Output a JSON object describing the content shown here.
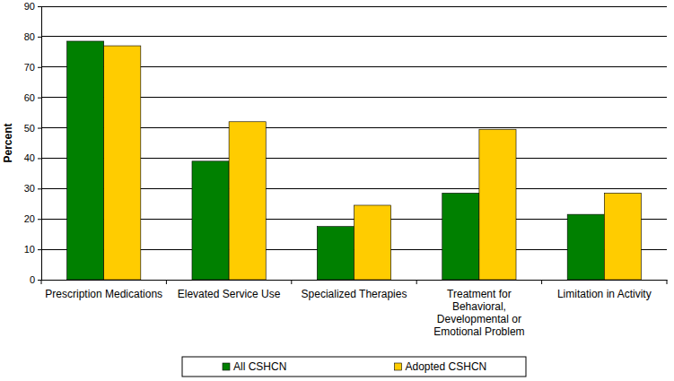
{
  "chart_data": {
    "type": "bar",
    "y_label": "Percent",
    "categories": [
      "Prescription Medications",
      "Elevated Service Use",
      "Specialized Therapies",
      "Treatment for Behavioral, Developmental or Emotional Problem",
      "Limitation in Activity"
    ],
    "series": [
      {
        "name": "All CSHCN",
        "color": "#008000",
        "values": [
          78.5,
          39,
          17.5,
          28.5,
          21.5
        ]
      },
      {
        "name": "Adopted CSHCN",
        "color": "#ffcc00",
        "values": [
          77,
          52,
          24.5,
          49.5,
          28.5
        ]
      }
    ],
    "ylim": [
      0,
      90
    ],
    "yticks": [
      0,
      10,
      20,
      30,
      40,
      50,
      60,
      70,
      80,
      90
    ],
    "grid": true,
    "legend": "bottom"
  }
}
